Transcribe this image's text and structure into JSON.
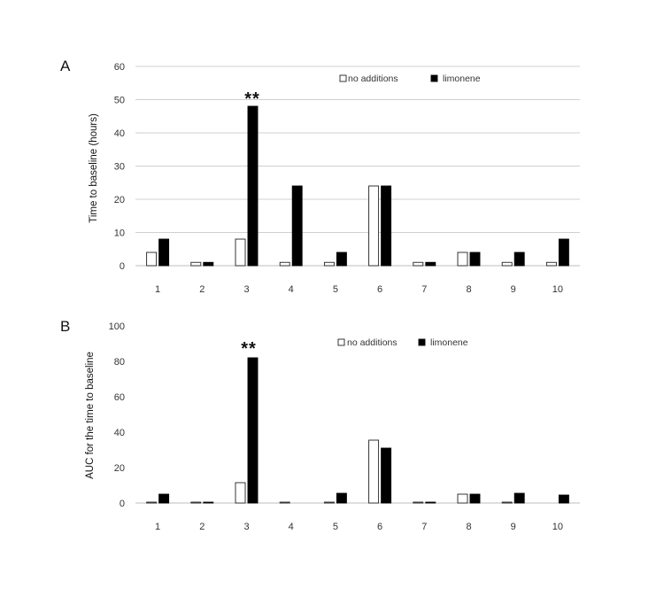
{
  "colors": {
    "no_additions": "#ffffff",
    "limonene": "#000000",
    "bar_stroke": "#222222"
  },
  "chart_data": [
    {
      "type": "bar",
      "panel_label": "A",
      "ylabel": "Time to baseline (hours)",
      "xlabel": "",
      "categories": [
        "1",
        "2",
        "3",
        "4",
        "5",
        "6",
        "7",
        "8",
        "9",
        "10"
      ],
      "ylim": [
        0,
        60
      ],
      "yticks": [
        0,
        10,
        20,
        30,
        40,
        50,
        60
      ],
      "grid": true,
      "legend_position": "top-right",
      "series": [
        {
          "name": "no additions",
          "values": [
            4,
            1,
            8,
            1,
            1,
            24,
            1,
            4,
            1,
            1
          ]
        },
        {
          "name": "limonene",
          "values": [
            8,
            1,
            48,
            24,
            4,
            24,
            1,
            4,
            4,
            8
          ]
        }
      ],
      "annotations": [
        {
          "category": "3",
          "text": "**"
        }
      ]
    },
    {
      "type": "bar",
      "panel_label": "B",
      "ylabel": "AUC for the time to baseline",
      "xlabel": "",
      "categories": [
        "1",
        "2",
        "3",
        "4",
        "5",
        "6",
        "7",
        "8",
        "9",
        "10"
      ],
      "ylim": [
        0,
        100
      ],
      "yticks": [
        0,
        20,
        40,
        60,
        80,
        100
      ],
      "grid": false,
      "legend_position": "top-right",
      "series": [
        {
          "name": "no additions",
          "values": [
            0.5,
            0.5,
            11.5,
            0.5,
            0.5,
            35.5,
            0.5,
            5,
            0.5,
            0
          ]
        },
        {
          "name": "limonene",
          "values": [
            5,
            0.5,
            82,
            0,
            5.5,
            31,
            0.5,
            5,
            5.5,
            4.5
          ]
        }
      ],
      "annotations": [
        {
          "category": "3",
          "text": "**"
        }
      ]
    }
  ]
}
